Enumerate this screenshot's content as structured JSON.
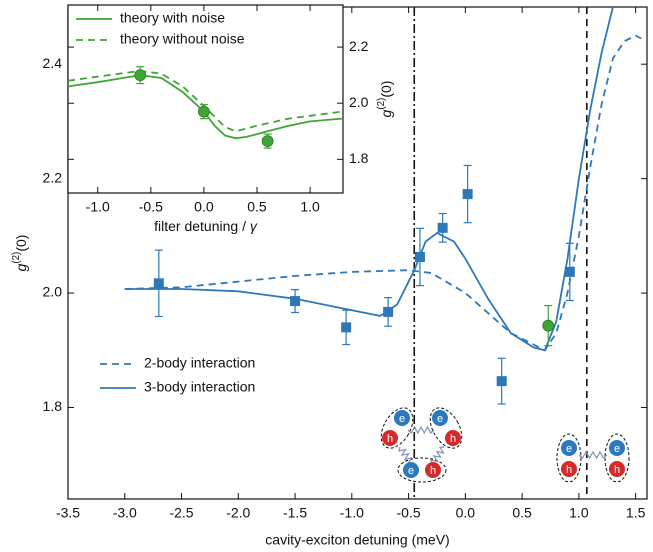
{
  "chart_data": [
    {
      "type": "line",
      "x_label": "cavity-exciton detuning (meV)",
      "y_label": {
        "base": "g",
        "sup": "(2)",
        "tail": "(0)"
      },
      "xlim": [
        -3.5,
        1.6
      ],
      "ylim": [
        1.64,
        2.5
      ],
      "xticks": [
        -3.5,
        {
          "value": -3,
          "label": "-3.0"
        },
        -2.5,
        {
          "value": -2,
          "label": "-2.0"
        },
        -1.5,
        {
          "value": -1,
          "label": "-1.0"
        },
        -0.5,
        {
          "value": 0,
          "label": "0.0"
        },
        0.5,
        {
          "value": 1,
          "label": "1.0"
        },
        1.5
      ],
      "yticks": [
        1.8,
        {
          "value": 2,
          "label": "2.0"
        },
        2.2,
        2.4
      ],
      "legend": "lower left",
      "series": [
        {
          "name": "2-body interaction",
          "color": "#2f78b7",
          "dash": "dashed",
          "x": [
            -3.0,
            -2.5,
            -2.0,
            -1.5,
            -1.0,
            -0.5,
            -0.3,
            0.0,
            0.2,
            0.4,
            0.6,
            0.7,
            0.8,
            0.9,
            1.0,
            1.1,
            1.2,
            1.3,
            1.4,
            1.5,
            1.55
          ],
          "values": [
            2.007,
            2.01,
            2.02,
            2.03,
            2.037,
            2.04,
            2.035,
            2.0,
            1.965,
            1.93,
            1.91,
            1.9,
            1.93,
            2.0,
            2.1,
            2.22,
            2.33,
            2.41,
            2.44,
            2.45,
            2.445
          ]
        },
        {
          "name": "3-body interaction",
          "color": "#2f78b7",
          "dash": "solid",
          "x": [
            -3.0,
            -2.5,
            -2.0,
            -1.5,
            -1.0,
            -0.75,
            -0.6,
            -0.45,
            -0.35,
            -0.25,
            -0.1,
            0.0,
            0.2,
            0.4,
            0.6,
            0.7,
            0.8,
            0.9,
            1.0,
            1.1,
            1.2,
            1.3
          ],
          "values": [
            2.007,
            2.007,
            2.003,
            1.99,
            1.97,
            1.96,
            1.98,
            2.04,
            2.09,
            2.105,
            2.09,
            2.06,
            1.99,
            1.93,
            1.905,
            1.9,
            1.95,
            2.06,
            2.2,
            2.32,
            2.42,
            2.5
          ]
        }
      ],
      "points": [
        {
          "color": "#2f78b7",
          "marker": "square",
          "x": [
            -2.7,
            -1.5,
            -1.05,
            -0.68,
            -0.4,
            -0.2,
            0.02,
            0.32,
            0.92
          ],
          "values": [
            2.017,
            1.986,
            1.94,
            1.967,
            2.063,
            2.114,
            2.173,
            1.846,
            2.037
          ],
          "errors": [
            0.058,
            0.02,
            0.03,
            0.025,
            0.05,
            0.025,
            0.05,
            0.04,
            0.05
          ]
        },
        {
          "color": "#3fa535",
          "marker": "circle",
          "x": [
            0.73
          ],
          "values": [
            1.943
          ],
          "errors": [
            0.035
          ]
        }
      ],
      "vlines": [
        {
          "x": -0.45,
          "dash": "dashdot"
        },
        {
          "x": 1.07,
          "dash": "dashed"
        }
      ],
      "annotations": {
        "electron": "e",
        "hole": "h"
      }
    },
    {
      "type": "line",
      "x_label": {
        "text": "filter detuning / ",
        "symbol": "γ"
      },
      "y_label": {
        "base": "g",
        "sup": "(2)",
        "tail": "(0)"
      },
      "xlim": [
        -1.28,
        1.31
      ],
      "ylim": [
        1.68,
        2.35
      ],
      "xticks": [
        {
          "value": -1,
          "label": "-1.0"
        },
        -0.5,
        {
          "value": 0,
          "label": "0.0"
        },
        0.5,
        {
          "value": 1,
          "label": "1.0"
        }
      ],
      "yticks": [
        1.8,
        {
          "value": 2,
          "label": "2.0"
        },
        2.2
      ],
      "y_axis_side": "right",
      "legend": "upper left",
      "series": [
        {
          "name": "theory with noise",
          "color": "#3fa535",
          "dash": "solid",
          "x": [
            -1.28,
            -1.0,
            -0.6,
            -0.4,
            -0.2,
            0.0,
            0.1,
            0.2,
            0.3,
            0.4,
            0.6,
            0.8,
            1.0,
            1.3
          ],
          "values": [
            2.06,
            2.075,
            2.1,
            2.09,
            2.04,
            1.97,
            1.92,
            1.885,
            1.875,
            1.88,
            1.9,
            1.92,
            1.935,
            1.945
          ]
        },
        {
          "name": "theory without noise",
          "color": "#3fa535",
          "dash": "dashed",
          "x": [
            -1.28,
            -1.0,
            -0.6,
            -0.4,
            -0.2,
            0.0,
            0.2,
            0.3,
            0.5,
            0.8,
            1.0,
            1.3
          ],
          "values": [
            2.08,
            2.095,
            2.115,
            2.105,
            2.06,
            1.99,
            1.915,
            1.9,
            1.92,
            1.945,
            1.955,
            1.97
          ]
        }
      ],
      "points": [
        {
          "color": "#3fa535",
          "marker": "circle",
          "x": [
            -0.6,
            0.0,
            0.6
          ],
          "values": [
            2.1,
            1.97,
            1.865
          ],
          "errors": [
            0.03,
            0.025,
            0.025
          ]
        }
      ]
    }
  ]
}
